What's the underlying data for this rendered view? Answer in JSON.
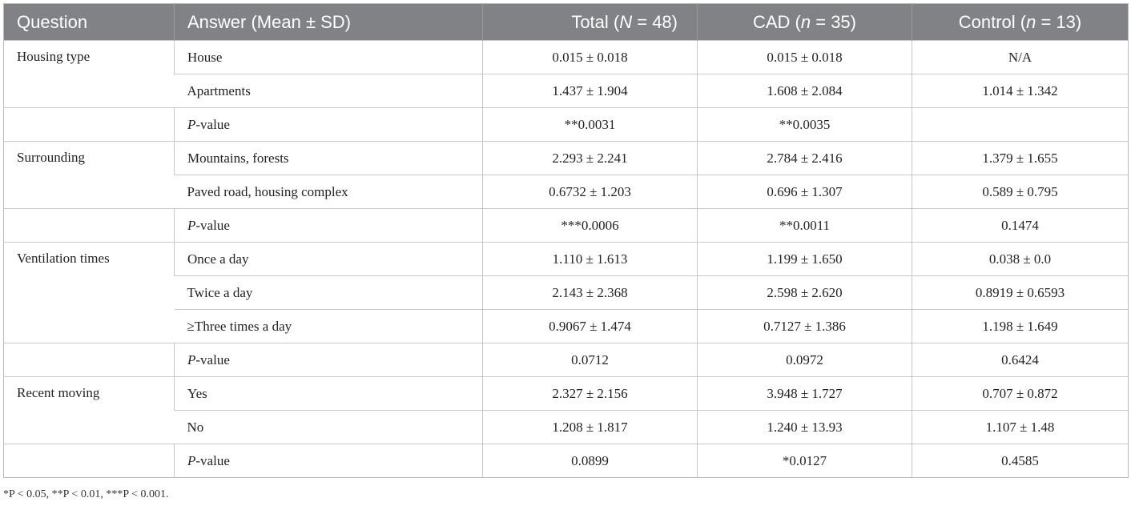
{
  "header": {
    "question": "Question",
    "answer": "Answer (Mean ± SD)",
    "total_pre": "Total (",
    "total_var": "N",
    "total_post": " = 48)",
    "cad_pre": "CAD (",
    "cad_var": "n",
    "cad_post": " = 35)",
    "control_pre": "Control (",
    "control_var": "n",
    "control_post": " = 13)"
  },
  "pvalue_italic": "P",
  "pvalue_rest": "-value",
  "rows": {
    "housing": {
      "question": "Housing type",
      "house": {
        "answer": "House",
        "total": "0.015 ± 0.018",
        "cad": "0.015 ± 0.018",
        "control": "N/A"
      },
      "apartments": {
        "answer": "Apartments",
        "total": "1.437 ± 1.904",
        "cad": "1.608 ± 2.084",
        "control": "1.014 ± 1.342"
      },
      "p": {
        "total": "**0.0031",
        "cad": "**0.0035",
        "control": ""
      }
    },
    "surrounding": {
      "question": "Surrounding",
      "mountains": {
        "answer": "Mountains, forests",
        "total": "2.293 ± 2.241",
        "cad": "2.784 ± 2.416",
        "control": "1.379 ± 1.655"
      },
      "paved": {
        "answer": "Paved road, housing complex",
        "total": "0.6732 ± 1.203",
        "cad": "0.696 ± 1.307",
        "control": "0.589 ± 0.795"
      },
      "p": {
        "total": "***0.0006",
        "cad": "**0.0011",
        "control": "0.1474"
      }
    },
    "ventilation": {
      "question": "Ventilation times",
      "once": {
        "answer": "Once a day",
        "total": "1.110 ± 1.613",
        "cad": "1.199 ± 1.650",
        "control": "0.038 ± 0.0"
      },
      "twice": {
        "answer": "Twice a day",
        "total": "2.143 ± 2.368",
        "cad": "2.598 ± 2.620",
        "control": "0.8919 ± 0.6593"
      },
      "three": {
        "answer": "≥Three times a day",
        "total": "0.9067 ± 1.474",
        "cad": "0.7127 ± 1.386",
        "control": "1.198 ± 1.649"
      },
      "p": {
        "total": "0.0712",
        "cad": "0.0972",
        "control": "0.6424"
      }
    },
    "moving": {
      "question": "Recent moving",
      "yes": {
        "answer": "Yes",
        "total": "2.327 ± 2.156",
        "cad": "3.948 ± 1.727",
        "control": "0.707 ± 0.872"
      },
      "no": {
        "answer": "No",
        "total": "1.208 ± 1.817",
        "cad": "1.240 ± 13.93",
        "control": "1.107 ± 1.48"
      },
      "p": {
        "total": "0.0899",
        "cad": "*0.0127",
        "control": "0.4585"
      }
    }
  },
  "footnote": "*P < 0.05, **P < 0.01, ***P < 0.001."
}
